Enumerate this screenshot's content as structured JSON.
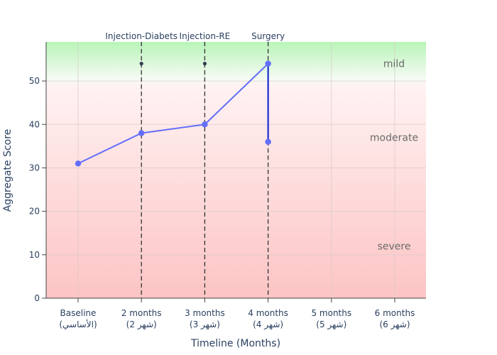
{
  "chart_data": {
    "type": "line",
    "xlabel": "Timeline (Months)",
    "ylabel": "Aggregate Score",
    "ylim": [
      0,
      59
    ],
    "yticks": [
      0,
      10,
      20,
      30,
      40,
      50
    ],
    "grid": true,
    "categories": [
      {
        "line1": "Baseline",
        "line2": "(الأساسي)"
      },
      {
        "line1": "2 months",
        "line2": "(شهر 2)"
      },
      {
        "line1": "3 months",
        "line2": "(شهر 3)"
      },
      {
        "line1": "4 months",
        "line2": "(شهر 4)"
      },
      {
        "line1": "5 months",
        "line2": "(شهر 5)"
      },
      {
        "line1": "6 months",
        "line2": "(شهر 6)"
      }
    ],
    "series": [
      {
        "color": "#636efa",
        "points": [
          {
            "x": 0,
            "y": 31
          },
          {
            "x": 1,
            "y": 38
          },
          {
            "x": 2,
            "y": 40
          },
          {
            "x": 3,
            "y": 54
          },
          {
            "x": 3,
            "y": 36
          }
        ]
      }
    ],
    "events": [
      {
        "x": 1,
        "label": "Injection-Diabets",
        "marker_y": 54
      },
      {
        "x": 2,
        "label": "Injection-RE",
        "marker_y": 54
      },
      {
        "x": 3,
        "label": "Surgery",
        "marker_y": 54
      }
    ],
    "bands": [
      {
        "label": "mild",
        "from": 50,
        "to": 59,
        "color": "#b8f5b8"
      },
      {
        "label": "moderate",
        "from": 20,
        "to": 50,
        "color": "#fde0e0"
      },
      {
        "label": "severe",
        "from": 0,
        "to": 20,
        "color": "#fdc8c8"
      }
    ],
    "band_label_values": {
      "mild": 54,
      "moderate": 37,
      "severe": 12
    }
  }
}
